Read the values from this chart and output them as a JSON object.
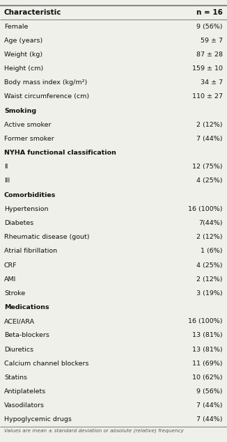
{
  "title_left": "Characteristic",
  "title_right": "n = 16",
  "rows": [
    {
      "label": "Female",
      "value": "9 (56%)",
      "bold": false
    },
    {
      "label": "Age (years)",
      "value": "59 ± 7",
      "bold": false
    },
    {
      "label": "Weight (kg)",
      "value": "87 ± 28",
      "bold": false
    },
    {
      "label": "Height (cm)",
      "value": "159 ± 10",
      "bold": false
    },
    {
      "label": "Body mass index (kg/m²)",
      "value": "34 ± 7",
      "bold": false
    },
    {
      "label": "Waist circumference (cm)",
      "value": "110 ± 27",
      "bold": false
    },
    {
      "label": "Smoking",
      "value": "",
      "bold": true
    },
    {
      "label": "Active smoker",
      "value": "2 (12%)",
      "bold": false
    },
    {
      "label": "Former smoker",
      "value": "7 (44%)",
      "bold": false
    },
    {
      "label": "NYHA functional classification",
      "value": "",
      "bold": true
    },
    {
      "label": "II",
      "value": "12 (75%)",
      "bold": false
    },
    {
      "label": "III",
      "value": "4 (25%)",
      "bold": false
    },
    {
      "label": "Comorbidities",
      "value": "",
      "bold": true
    },
    {
      "label": "Hypertension",
      "value": "16 (100%)",
      "bold": false
    },
    {
      "label": "Diabetes",
      "value": "7(44%)",
      "bold": false
    },
    {
      "label": "Rheumatic disease (gout)",
      "value": "2 (12%)",
      "bold": false
    },
    {
      "label": "Atrial fibrillation",
      "value": "1 (6%)",
      "bold": false
    },
    {
      "label": "CRF",
      "value": "4 (25%)",
      "bold": false
    },
    {
      "label": "AMI",
      "value": "2 (12%)",
      "bold": false
    },
    {
      "label": "Stroke",
      "value": "3 (19%)",
      "bold": false
    },
    {
      "label": "Medications",
      "value": "",
      "bold": true
    },
    {
      "label": "ACEI/ARA",
      "value": "16 (100%)",
      "bold": false
    },
    {
      "label": "Beta-blockers",
      "value": "13 (81%)",
      "bold": false
    },
    {
      "label": "Diuretics",
      "value": "13 (81%)",
      "bold": false
    },
    {
      "label": "Calcium channel blockers",
      "value": "11 (69%)",
      "bold": false
    },
    {
      "label": "Statins",
      "value": "10 (62%)",
      "bold": false
    },
    {
      "label": "Antiplatelets",
      "value": "9 (56%)",
      "bold": false
    },
    {
      "label": "Vasodilators",
      "value": "7 (44%)",
      "bold": false
    },
    {
      "label": "Hypoglycemic drugs",
      "value": "7 (44%)",
      "bold": false
    }
  ],
  "footnote": "Values are mean ± standard deviation or absolute (relative) frequency",
  "bg_color": "#f0f0eb",
  "line_color": "#888888",
  "text_color": "#111111",
  "footnote_color": "#555555",
  "font_size": 6.8,
  "header_font_size": 7.5
}
